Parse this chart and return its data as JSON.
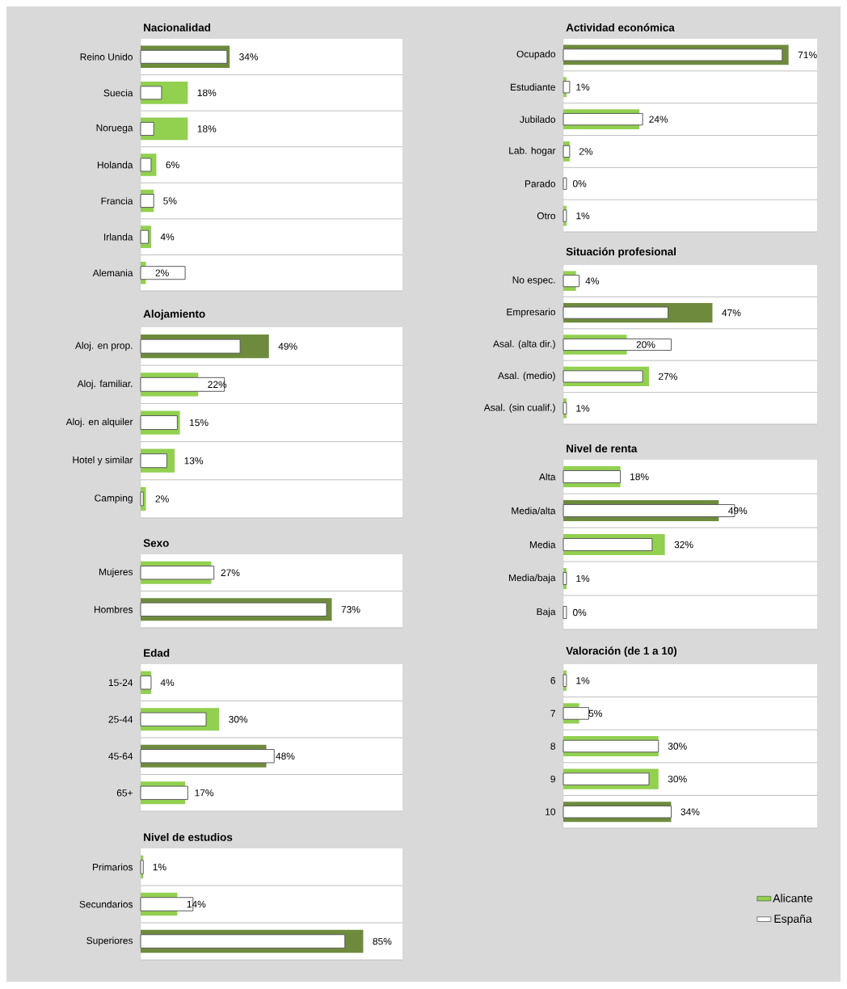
{
  "chart_data": [
    {
      "type": "bar",
      "orientation": "horizontal",
      "title": "Nacionalidad",
      "categories": [
        "Reino Unido",
        "Suecia",
        "Noruega",
        "Holanda",
        "Francia",
        "Irlanda",
        "Alemania"
      ],
      "xlim": [
        0,
        100
      ],
      "tick_labels": "y",
      "grid": "y",
      "series": [
        {
          "colors": [
            "#6e8b3d",
            "#92d050",
            "#92d050",
            "#92d050",
            "#92d050",
            "#92d050",
            "#92d050"
          ],
          "values": [
            34,
            18,
            18,
            6,
            5,
            4,
            2
          ],
          "value_labels": [
            "34%",
            "18%",
            "18%",
            "6%",
            "5%",
            "4%",
            "2%"
          ]
        },
        {
          "color": "#595959",
          "values": [
            33,
            8,
            5,
            4,
            5,
            3,
            17
          ]
        }
      ]
    },
    {
      "type": "bar",
      "orientation": "horizontal",
      "title": "Alojamiento",
      "categories": [
        "Aloj. en prop.",
        "Aloj. familiar.",
        "Aloj. en alquiler",
        "Hotel y similar",
        "Camping"
      ],
      "xlim": [
        0,
        100
      ],
      "tick_labels": "y",
      "grid": "y",
      "series": [
        {
          "colors": [
            "#6e8b3d",
            "#92d050",
            "#92d050",
            "#92d050",
            "#92d050"
          ],
          "values": [
            49,
            22,
            15,
            13,
            2
          ],
          "value_labels": [
            "49%",
            "22%",
            "15%",
            "13%",
            "2%"
          ]
        },
        {
          "color": "#595959",
          "values": [
            38,
            32,
            14,
            10,
            1
          ]
        }
      ]
    },
    {
      "type": "bar",
      "orientation": "horizontal",
      "title": "Sexo",
      "categories": [
        "Mujeres",
        "Hombres"
      ],
      "xlim": [
        0,
        100
      ],
      "tick_labels": "y",
      "grid": "y",
      "series": [
        {
          "colors": [
            "#92d050",
            "#6e8b3d"
          ],
          "values": [
            27,
            73
          ],
          "value_labels": [
            "27%",
            "73%"
          ]
        },
        {
          "color": "#595959",
          "values": [
            28,
            71
          ]
        }
      ]
    },
    {
      "type": "bar",
      "orientation": "horizontal",
      "title": "Edad",
      "categories": [
        "15-24",
        "25-44",
        "45-64",
        "65+"
      ],
      "xlim": [
        0,
        100
      ],
      "tick_labels": "y",
      "grid": "y",
      "series": [
        {
          "colors": [
            "#92d050",
            "#92d050",
            "#6e8b3d",
            "#92d050"
          ],
          "values": [
            4,
            30,
            48,
            17
          ],
          "value_labels": [
            "4%",
            "30%",
            "48%",
            "17%"
          ]
        },
        {
          "color": "#595959",
          "values": [
            4,
            25,
            51,
            18
          ]
        }
      ]
    },
    {
      "type": "bar",
      "orientation": "horizontal",
      "title": "Nivel de estudios",
      "categories": [
        "Primarios",
        "Secundarios",
        "Superiores"
      ],
      "xlim": [
        0,
        100
      ],
      "tick_labels": "y",
      "grid": "y",
      "series": [
        {
          "colors": [
            "#92d050",
            "#92d050",
            "#6e8b3d"
          ],
          "values": [
            1,
            14,
            85
          ],
          "value_labels": [
            "1%",
            "14%",
            "85%"
          ]
        },
        {
          "color": "#595959",
          "values": [
            1,
            20,
            78
          ]
        }
      ]
    },
    {
      "type": "bar",
      "orientation": "horizontal",
      "title": "Actividad económica",
      "categories": [
        "Ocupado",
        "Estudiante",
        "Jubilado",
        "Lab. hogar",
        "Parado",
        "Otro"
      ],
      "xlim": [
        0,
        80
      ],
      "tick_labels": "y",
      "grid": "y",
      "series": [
        {
          "colors": [
            "#6e8b3d",
            "#92d050",
            "#92d050",
            "#92d050",
            "#92d050",
            "#92d050"
          ],
          "values": [
            71,
            1,
            24,
            2,
            0,
            1
          ],
          "value_labels": [
            "71%",
            "1%",
            "24%",
            "2%",
            "0%",
            "1%"
          ]
        },
        {
          "color": "#595959",
          "values": [
            69,
            2,
            25,
            2,
            1,
            1
          ]
        }
      ]
    },
    {
      "type": "bar",
      "orientation": "horizontal",
      "title": "Situación profesional",
      "categories": [
        "No espec.",
        "Empresario",
        "Asal. (alta dir.)",
        "Asal. (medio)",
        "Asal. (sin cualif.)"
      ],
      "xlim": [
        0,
        80
      ],
      "tick_labels": "y",
      "grid": "y",
      "series": [
        {
          "colors": [
            "#92d050",
            "#6e8b3d",
            "#92d050",
            "#92d050",
            "#92d050"
          ],
          "values": [
            4,
            47,
            20,
            27,
            1
          ],
          "value_labels": [
            "4%",
            "47%",
            "20%",
            "27%",
            "1%"
          ]
        },
        {
          "color": "#595959",
          "values": [
            5,
            33,
            34,
            25,
            1
          ]
        }
      ]
    },
    {
      "type": "bar",
      "orientation": "horizontal",
      "title": "Nivel de renta",
      "categories": [
        "Alta",
        "Media/alta",
        "Media",
        "Media/baja",
        "Baja"
      ],
      "xlim": [
        0,
        80
      ],
      "tick_labels": "y",
      "grid": "y",
      "series": [
        {
          "colors": [
            "#92d050",
            "#6e8b3d",
            "#92d050",
            "#92d050",
            "#92d050"
          ],
          "values": [
            18,
            49,
            32,
            1,
            0
          ],
          "value_labels": [
            "18%",
            "49%",
            "32%",
            "1%",
            "0%"
          ]
        },
        {
          "color": "#595959",
          "values": [
            18,
            54,
            28,
            1,
            1
          ]
        }
      ]
    },
    {
      "type": "bar",
      "orientation": "horizontal",
      "title": "Valoración (de 1 a 10)",
      "categories": [
        "6",
        "7",
        "8",
        "9",
        "10"
      ],
      "xlim": [
        0,
        80
      ],
      "tick_labels": "y",
      "grid": "y",
      "legend": "bottom right",
      "series": [
        {
          "name": "Alicante",
          "color": "#92d050",
          "colors": [
            "#92d050",
            "#92d050",
            "#92d050",
            "#92d050",
            "#6e8b3d"
          ],
          "values": [
            1,
            5,
            30,
            30,
            34
          ],
          "value_labels": [
            "1%",
            "5%",
            "30%",
            "30%",
            "34%"
          ]
        },
        {
          "name": "España",
          "color": "#595959",
          "values": [
            1,
            8,
            30,
            27,
            34
          ]
        }
      ]
    }
  ]
}
